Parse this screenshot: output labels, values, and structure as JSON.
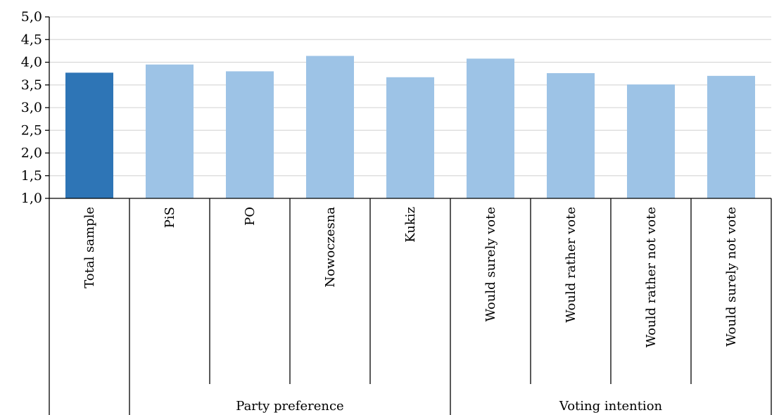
{
  "chart_data": {
    "type": "bar",
    "categories": [
      "Total sample",
      "PiS",
      "PO",
      "Nowoczesna",
      "Kukiz",
      "Would surely vote",
      "Would rather vote",
      "Would rather not vote",
      "Would surely not vote"
    ],
    "values": [
      3.77,
      3.95,
      3.8,
      4.14,
      3.67,
      4.08,
      3.76,
      3.51,
      3.7
    ],
    "highlight_index": 0,
    "groups": [
      {
        "label": "",
        "start": 0,
        "end": 0
      },
      {
        "label": "Party preference",
        "start": 1,
        "end": 4
      },
      {
        "label": "Voting intention",
        "start": 5,
        "end": 8
      }
    ],
    "ylim": [
      1.0,
      5.0
    ],
    "yticks": [
      "1,0",
      "1,5",
      "2,0",
      "2,5",
      "3,0",
      "3,5",
      "4,0",
      "4,5",
      "5,0"
    ],
    "grid": true,
    "legend": "none",
    "colors": {
      "highlight": "#2e75b6",
      "bar": "#9dc3e6",
      "grid": "#d9d9d9",
      "axis": "#000000"
    }
  }
}
